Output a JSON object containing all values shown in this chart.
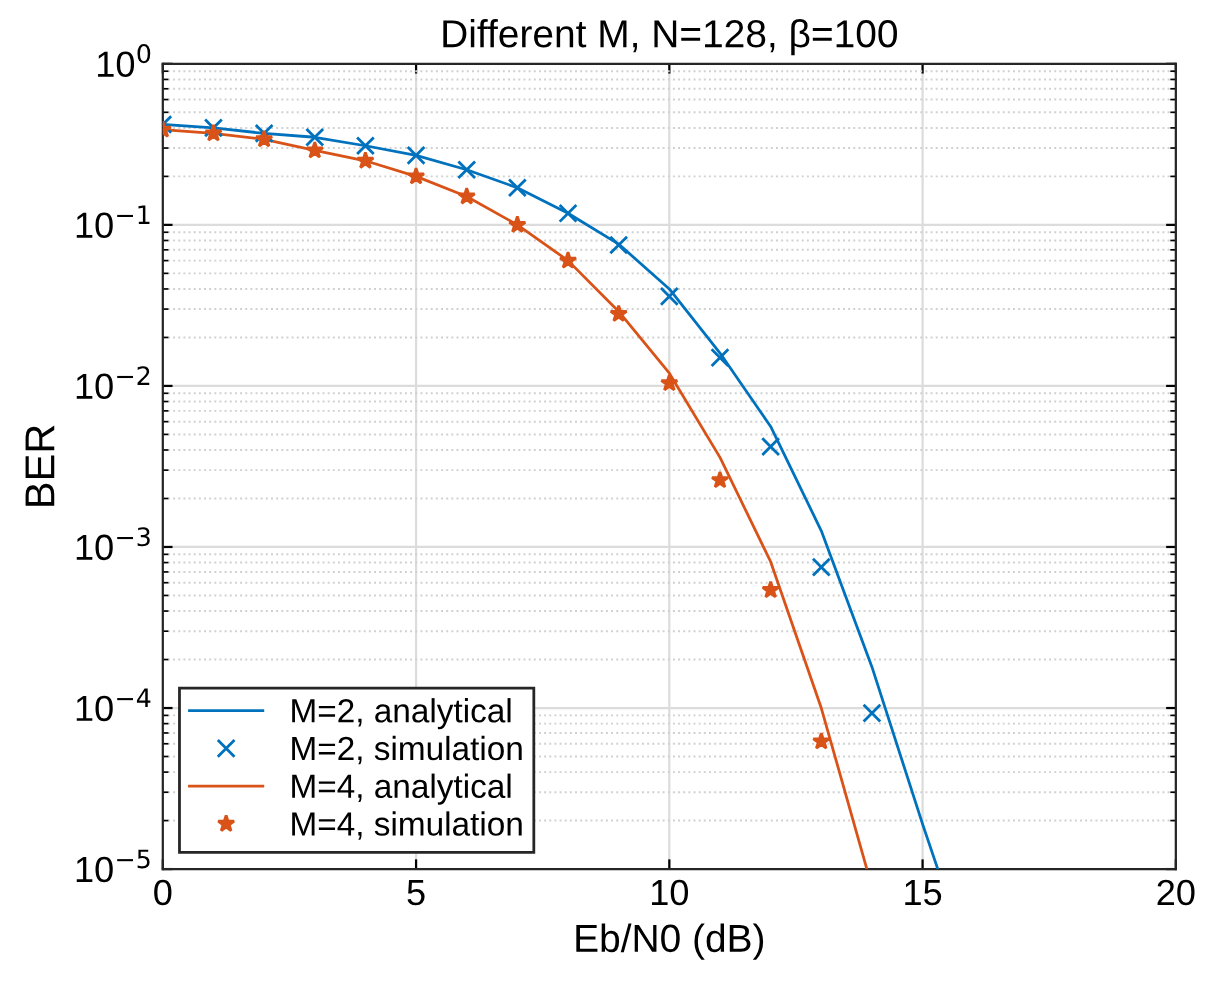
{
  "chart_data": {
    "type": "line",
    "title": "Different M, N=128, β=100",
    "xlabel": "Eb/N0 (dB)",
    "ylabel": "BER",
    "xlim": [
      0,
      20
    ],
    "xticks": [
      0,
      5,
      10,
      15,
      20
    ],
    "ylim": [
      1e-05,
      1
    ],
    "yticks": [
      {
        "value": 1e-05,
        "label": "10$^{−5}$"
      },
      {
        "value": 0.0001,
        "label": "10$^{−4}$"
      },
      {
        "value": 0.001,
        "label": "10$^{−3}$"
      },
      {
        "value": 0.01,
        "label": "10$^{−2}$"
      },
      {
        "value": 0.1,
        "label": "10$^{−1}$"
      },
      {
        "value": 1,
        "label": "10$^{0}$"
      }
    ],
    "log": "y",
    "grid": true,
    "legend": "bottom left",
    "series": [
      {
        "name": "M=2, analytical",
        "type": "line",
        "marker": "none",
        "line_style": "solid",
        "color": "#0072bd",
        "x": [
          0,
          1,
          2,
          3,
          4,
          5,
          6,
          7,
          8,
          9,
          10,
          11,
          12,
          13,
          14,
          15,
          15.3
        ],
        "values": [
          0.42,
          0.4,
          0.37,
          0.35,
          0.31,
          0.27,
          0.22,
          0.17,
          0.118,
          0.076,
          0.04,
          0.016,
          0.0056,
          0.00126,
          0.00018,
          1.9e-05,
          1e-05
        ]
      },
      {
        "name": "M=2, simulation",
        "type": "scatter",
        "marker": "cross",
        "color": "#0072bd",
        "x": [
          0,
          1,
          2,
          3,
          4,
          5,
          6,
          7,
          8,
          9,
          10,
          11,
          12,
          13,
          14
        ],
        "values": [
          0.42,
          0.4,
          0.37,
          0.35,
          0.31,
          0.27,
          0.22,
          0.17,
          0.118,
          0.075,
          0.036,
          0.015,
          0.0042,
          0.00075,
          9.3e-05
        ]
      },
      {
        "name": "M=4, analytical",
        "type": "line",
        "marker": "none",
        "line_style": "solid",
        "color": "#d95319",
        "x": [
          0,
          1,
          2,
          3,
          4,
          5,
          6,
          7,
          8,
          9,
          10,
          11,
          12,
          13,
          13.9
        ],
        "values": [
          0.39,
          0.37,
          0.34,
          0.29,
          0.25,
          0.2,
          0.15,
          0.1,
          0.06,
          0.029,
          0.012,
          0.0036,
          0.00081,
          0.0001,
          1e-05
        ]
      },
      {
        "name": "M=4, simulation",
        "type": "scatter",
        "marker": "star",
        "color": "#d95319",
        "x": [
          0,
          1,
          2,
          3,
          4,
          5,
          6,
          7,
          8,
          9,
          10,
          11,
          12,
          13
        ],
        "values": [
          0.39,
          0.37,
          0.34,
          0.29,
          0.25,
          0.2,
          0.15,
          0.1,
          0.06,
          0.028,
          0.0104,
          0.0026,
          0.00054,
          6.2e-05
        ]
      }
    ]
  }
}
